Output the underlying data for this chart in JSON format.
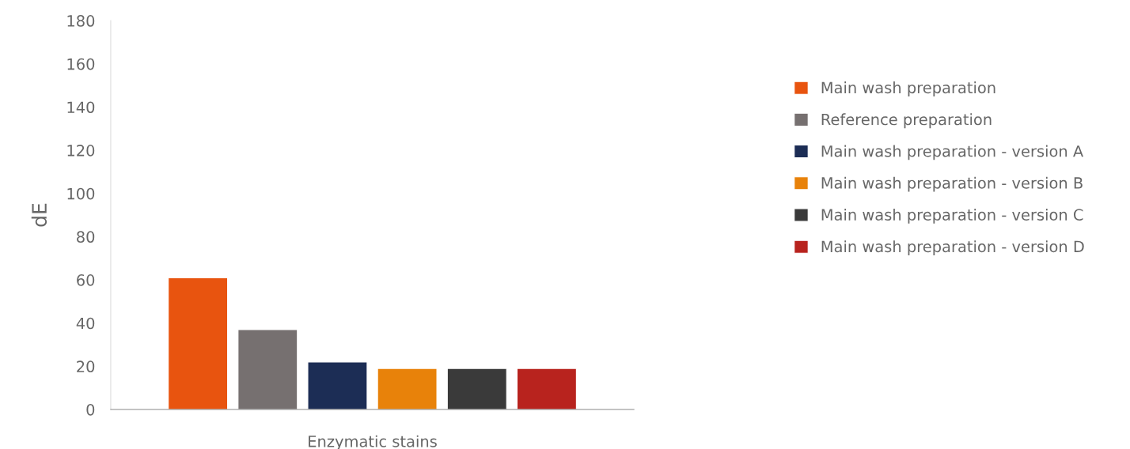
{
  "chart_data": {
    "type": "bar",
    "ylabel": "dE",
    "xlabel": "Enzymatic stains",
    "categories": [
      null
    ],
    "series": [
      {
        "name": "Main wash preparation",
        "color": "#e8540f",
        "values": [
          61
        ]
      },
      {
        "name": "Reference preparation",
        "color": "#767070",
        "values": [
          37
        ]
      },
      {
        "name": "Main wash preparation - version A",
        "color": "#1c2d55",
        "values": [
          22
        ]
      },
      {
        "name": "Main wash preparation - version B",
        "color": "#e8820a",
        "values": [
          19
        ]
      },
      {
        "name": "Main wash preparation - version C",
        "color": "#3a3a3a",
        "values": [
          19
        ]
      },
      {
        "name": "Main wash preparation - version D",
        "color": "#b8231e",
        "values": [
          19
        ]
      }
    ],
    "ylim": [
      0,
      180
    ],
    "yticks": [
      0,
      20,
      40,
      60,
      80,
      100,
      120,
      140,
      160,
      180
    ],
    "grid": false,
    "legend": "right"
  }
}
